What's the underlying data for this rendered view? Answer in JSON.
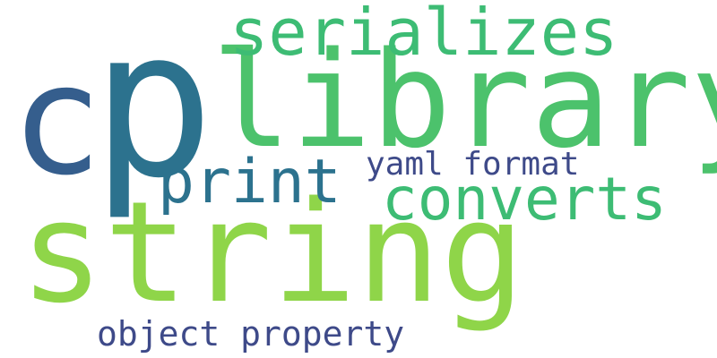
{
  "word_cloud": {
    "background_color": "#ffffff",
    "words": [
      {
        "id": "string",
        "text": "string",
        "color": "#8fd549"
      },
      {
        "id": "library",
        "text": "library",
        "color": "#4cc26c"
      },
      {
        "id": "p",
        "text": "p",
        "color": "#2c728e"
      },
      {
        "id": "c",
        "text": "c",
        "color": "#355e8d"
      },
      {
        "id": "serial",
        "text": "serializes",
        "color": "#3dbc74"
      },
      {
        "id": "converts",
        "text": "converts",
        "color": "#3dbc74"
      },
      {
        "id": "print",
        "text": "print",
        "color": "#2c728e"
      },
      {
        "id": "yaml",
        "text": "yaml format",
        "color": "#3e4a89"
      },
      {
        "id": "object",
        "text": "object property",
        "color": "#3e4a89"
      }
    ]
  }
}
